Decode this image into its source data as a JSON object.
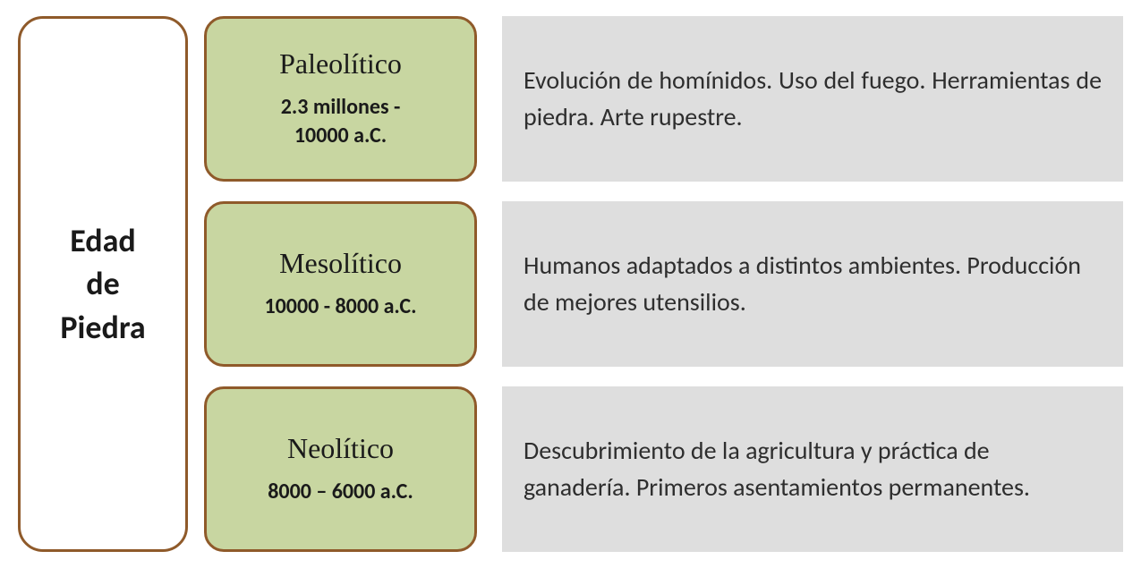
{
  "layout": {
    "type": "infographic",
    "columns": 3,
    "rows": 3,
    "background_color": "#ffffff"
  },
  "styles": {
    "main_label": {
      "border_color": "#8f5a2a",
      "border_width": 3,
      "border_radius": 28,
      "background_color": "#ffffff",
      "font_size": 36,
      "font_weight": "bold",
      "text_color": "#1a1a1a"
    },
    "period_box": {
      "border_color": "#8f5a2a",
      "border_width": 3,
      "border_radius": 22,
      "background_color": "#c8d6a1",
      "title_font_size": 32,
      "title_font_family": "Palatino Linotype",
      "dates_font_size": 24,
      "dates_font_weight": "bold",
      "text_color": "#1a1a1a"
    },
    "desc_box": {
      "background_color": "#dedede",
      "font_size": 28,
      "text_color": "#2e2e2e"
    }
  },
  "main_label": {
    "line1": "Edad",
    "line2": "de",
    "line3": "Piedra"
  },
  "periods": [
    {
      "name": "Paleolítico",
      "dates_line1": "2.3 millones -",
      "dates_line2": "10000 a.C.",
      "description": "Evolución de homínidos. Uso del fuego. Herramientas de piedra. Arte rupestre.",
      "justify": true
    },
    {
      "name": "Mesolítico",
      "dates_line1": "10000 - 8000 a.C.",
      "dates_line2": "",
      "description": "Humanos adaptados a distintos ambientes. Producción de mejores utensilios.",
      "justify": false
    },
    {
      "name": "Neolítico",
      "dates_line1": "8000 – 6000 a.C.",
      "dates_line2": "",
      "description": "Descubrimiento de la agricultura y práctica de ganadería. Primeros asentamientos permanentes.",
      "justify": false
    }
  ]
}
